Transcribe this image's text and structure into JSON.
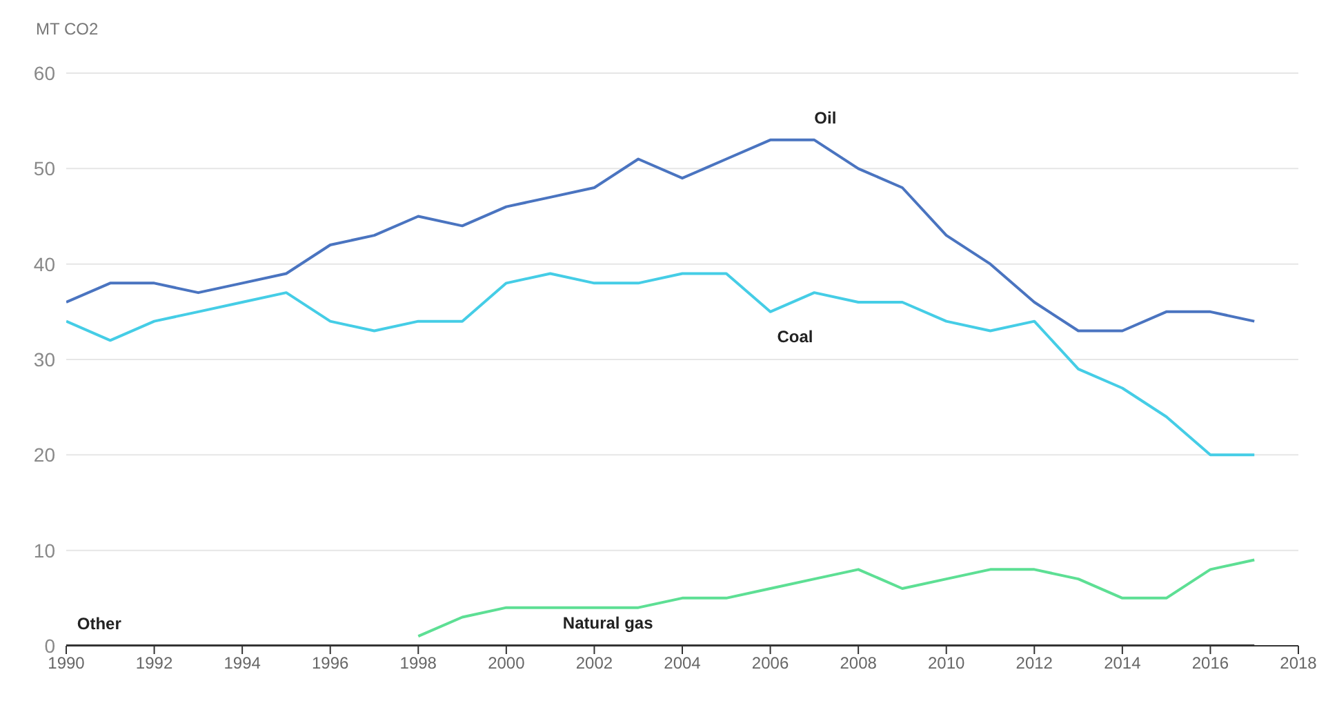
{
  "chart_data": {
    "type": "line",
    "ylabel": "MT CO2",
    "x": [
      1990,
      1991,
      1992,
      1993,
      1994,
      1995,
      1996,
      1997,
      1998,
      1999,
      2000,
      2001,
      2002,
      2003,
      2004,
      2005,
      2006,
      2007,
      2008,
      2009,
      2010,
      2011,
      2012,
      2013,
      2014,
      2015,
      2016,
      2017
    ],
    "series": [
      {
        "name": "Oil",
        "color": "#4a74c0",
        "values": [
          36,
          38,
          38,
          37,
          38,
          39,
          42,
          43,
          45,
          44,
          46,
          47,
          48,
          51,
          49,
          51,
          53,
          53,
          50,
          48,
          43,
          40,
          36,
          33,
          33,
          35,
          35,
          34
        ]
      },
      {
        "name": "Coal",
        "color": "#45cde6",
        "values": [
          34,
          32,
          34,
          35,
          36,
          37,
          34,
          33,
          34,
          34,
          38,
          39,
          38,
          38,
          39,
          39,
          35,
          37,
          36,
          36,
          34,
          33,
          34,
          29,
          27,
          24,
          20,
          20
        ]
      },
      {
        "name": "Natural gas",
        "color": "#5ddf94",
        "values": [
          null,
          null,
          null,
          null,
          null,
          null,
          null,
          null,
          1,
          3,
          4,
          4,
          4,
          4,
          5,
          5,
          6,
          7,
          8,
          6,
          7,
          8,
          8,
          7,
          5,
          5,
          8,
          9
        ]
      },
      {
        "name": "Other",
        "color": "#333333",
        "values": [
          0,
          0,
          0,
          0,
          0,
          0,
          0,
          0,
          0,
          0,
          0,
          0,
          0,
          0,
          0,
          0,
          0,
          0,
          0,
          0,
          0,
          0,
          0,
          0,
          0,
          0,
          0,
          0
        ]
      }
    ],
    "xlim": [
      1990,
      2018
    ],
    "xticks": [
      1990,
      1992,
      1994,
      1996,
      1998,
      2000,
      2002,
      2004,
      2006,
      2008,
      2010,
      2012,
      2014,
      2016,
      2018
    ],
    "ylim": [
      0,
      60
    ],
    "yticks": [
      0,
      10,
      20,
      30,
      40,
      50,
      60
    ],
    "grid": "y",
    "legend": false,
    "marker": "none",
    "line_style": "solid"
  }
}
